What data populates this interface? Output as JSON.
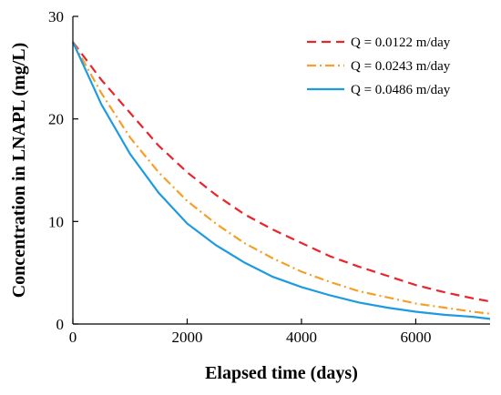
{
  "chart_data": {
    "type": "line",
    "title": "",
    "xlabel": "Elapsed time (days)",
    "ylabel": "Concentration in LNAPL (mg/L)",
    "xlim": [
      0,
      7300
    ],
    "ylim": [
      0,
      30
    ],
    "xticks": [
      0,
      2000,
      4000,
      6000
    ],
    "yticks": [
      0,
      10,
      20,
      30
    ],
    "xtick_labels": [
      "0",
      "2000",
      "4000",
      "6000"
    ],
    "ytick_labels": [
      "0",
      "10",
      "20",
      "30"
    ],
    "grid": false,
    "legend_position": "top-right",
    "series": [
      {
        "name": "Q = 0.0122 m/day",
        "color": "#e8252b",
        "style": "dashed",
        "x": [
          0,
          500,
          1000,
          1500,
          2000,
          2500,
          3000,
          3500,
          4000,
          4500,
          5000,
          5500,
          6000,
          6500,
          7000,
          7300
        ],
        "y": [
          27.5,
          23.8,
          20.6,
          17.4,
          14.8,
          12.6,
          10.7,
          9.2,
          7.9,
          6.6,
          5.6,
          4.7,
          3.8,
          3.1,
          2.5,
          2.2
        ]
      },
      {
        "name": "Q = 0.0243 m/day",
        "color": "#f5a02a",
        "style": "dashdot",
        "x": [
          0,
          500,
          1000,
          1500,
          2000,
          2500,
          3000,
          3500,
          4000,
          4500,
          5000,
          5500,
          6000,
          6500,
          7000,
          7300
        ],
        "y": [
          27.5,
          22.5,
          18.2,
          14.8,
          12.0,
          9.8,
          7.9,
          6.4,
          5.1,
          4.1,
          3.2,
          2.6,
          2.0,
          1.6,
          1.2,
          1.0
        ]
      },
      {
        "name": "Q = 0.0486 m/day",
        "color": "#1e9be0",
        "style": "solid",
        "x": [
          0,
          500,
          1000,
          1500,
          2000,
          2500,
          3000,
          3500,
          4000,
          4500,
          5000,
          5500,
          6000,
          6500,
          7000,
          7300
        ],
        "y": [
          27.5,
          21.4,
          16.6,
          12.8,
          9.8,
          7.7,
          6.0,
          4.6,
          3.6,
          2.8,
          2.1,
          1.6,
          1.2,
          0.9,
          0.7,
          0.5
        ]
      }
    ]
  }
}
